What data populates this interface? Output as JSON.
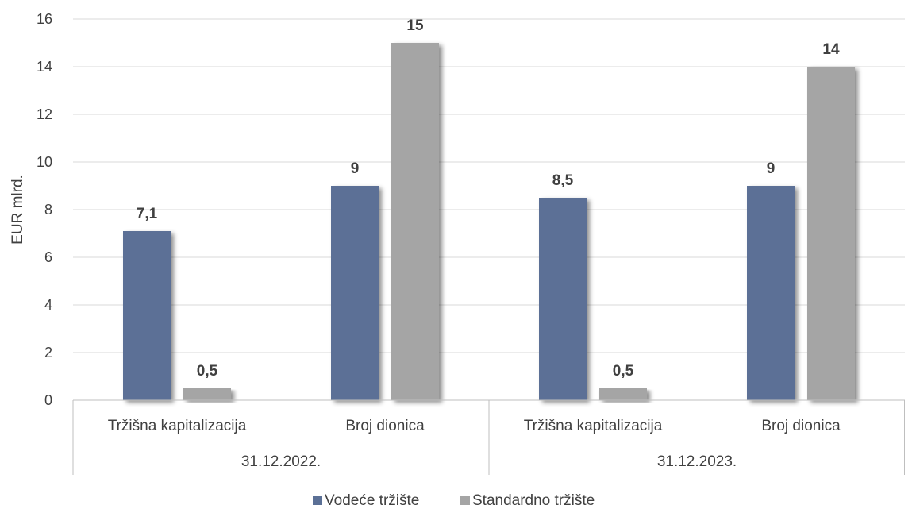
{
  "chart_data": {
    "type": "bar",
    "ylabel": "EUR mlrd.",
    "ylim": [
      0,
      16
    ],
    "yticks": [
      0,
      2,
      4,
      6,
      8,
      10,
      12,
      14,
      16
    ],
    "grid": true,
    "legend_position": "bottom",
    "groups": [
      {
        "label": "31.12.2022.",
        "categories": [
          "Tržišna kapitalizacija",
          "Broj dionica"
        ]
      },
      {
        "label": "31.12.2023.",
        "categories": [
          "Tržišna kapitalizacija",
          "Broj dionica"
        ]
      }
    ],
    "series": [
      {
        "name": "Vodeće tržište",
        "color": "#5b7096",
        "values": [
          7.1,
          9,
          8.5,
          9
        ],
        "labels": [
          "7,1",
          "9",
          "8,5",
          "9"
        ]
      },
      {
        "name": "Standardno tržište",
        "color": "#a5a5a5",
        "values": [
          0.5,
          15,
          0.5,
          14
        ],
        "labels": [
          "0,5",
          "15",
          "0,5",
          "14"
        ]
      }
    ]
  }
}
